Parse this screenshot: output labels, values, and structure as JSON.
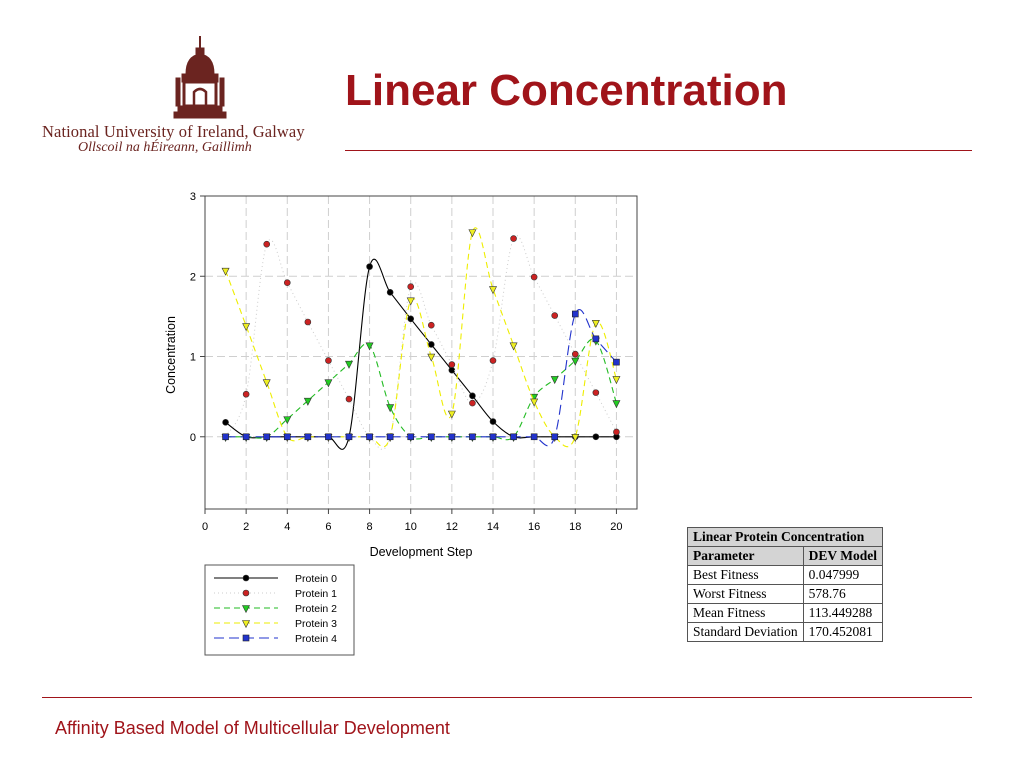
{
  "slide": {
    "title": "Linear Concentration",
    "footer": "Affinity Based Model of Multicellular Development",
    "university_name": "National University of Ireland, Galway",
    "university_name_irish": "Ollscoil na hÉireann, Gaillimh",
    "colors": {
      "accent": "#a0141a",
      "logo": "#6b2420"
    }
  },
  "chart_data": {
    "type": "line",
    "title": "",
    "xlabel": "Development Step",
    "ylabel": "Concentration",
    "xlim": [
      0,
      21
    ],
    "ylim": [
      -0.9,
      3
    ],
    "xticks": [
      0,
      2,
      4,
      6,
      8,
      10,
      12,
      14,
      16,
      18,
      20
    ],
    "yticks": [
      0,
      1,
      2,
      3
    ],
    "grid": true,
    "legend_position": "below",
    "x": [
      1,
      2,
      3,
      4,
      5,
      6,
      7,
      8,
      9,
      10,
      11,
      12,
      13,
      14,
      15,
      16,
      17,
      18,
      19,
      20
    ],
    "series": [
      {
        "name": "Protein 0",
        "color": "#000000",
        "marker": "circle",
        "fill": "#000000",
        "line": "solid",
        "values": [
          0.18,
          0,
          0,
          0,
          0,
          0,
          0,
          2.12,
          1.8,
          1.47,
          1.15,
          0.83,
          0.51,
          0.19,
          0,
          0,
          0,
          0,
          0,
          0
        ]
      },
      {
        "name": "Protein 1",
        "color": "#cccccc",
        "marker": "circle",
        "fill": "#cc2222",
        "line": "dotted",
        "values": [
          0,
          0.53,
          2.4,
          1.92,
          1.43,
          0.95,
          0.47,
          0,
          0,
          1.87,
          1.39,
          0.9,
          0.42,
          0.95,
          2.47,
          1.99,
          1.51,
          1.03,
          0.55,
          0.06
        ]
      },
      {
        "name": "Protein 2",
        "color": "#22bb22",
        "marker": "triangle",
        "fill": "#22cc22",
        "line": "dashed",
        "values": [
          0,
          0,
          0,
          0.22,
          0.45,
          0.68,
          0.91,
          1.14,
          0.37,
          0,
          0,
          0,
          0,
          0,
          0,
          0.5,
          0.72,
          0.95,
          1.2,
          0.42
        ]
      },
      {
        "name": "Protein 3",
        "color": "#eeee00",
        "marker": "triangle",
        "fill": "#eeee22",
        "line": "dashed",
        "values": [
          2.07,
          1.38,
          0.68,
          0,
          0,
          0,
          0,
          0,
          0,
          1.7,
          1.0,
          0.29,
          2.55,
          1.84,
          1.14,
          0.44,
          0,
          0,
          1.42,
          0.72
        ]
      },
      {
        "name": "Protein 4",
        "color": "#2233cc",
        "marker": "square",
        "fill": "#2233cc",
        "line": "longdash",
        "values": [
          0,
          0,
          0,
          0,
          0,
          0,
          0,
          0,
          0,
          0,
          0,
          0,
          0,
          0,
          0,
          0,
          0,
          1.53,
          1.22,
          0.93
        ]
      }
    ]
  },
  "table": {
    "caption": "Linear Protein Concentration",
    "headers": [
      "Parameter",
      "DEV Model"
    ],
    "rows": [
      [
        "Best Fitness",
        "0.047999"
      ],
      [
        "Worst Fitness",
        "578.76"
      ],
      [
        "Mean Fitness",
        "113.449288"
      ],
      [
        "Standard Deviation",
        "170.452081"
      ]
    ]
  }
}
